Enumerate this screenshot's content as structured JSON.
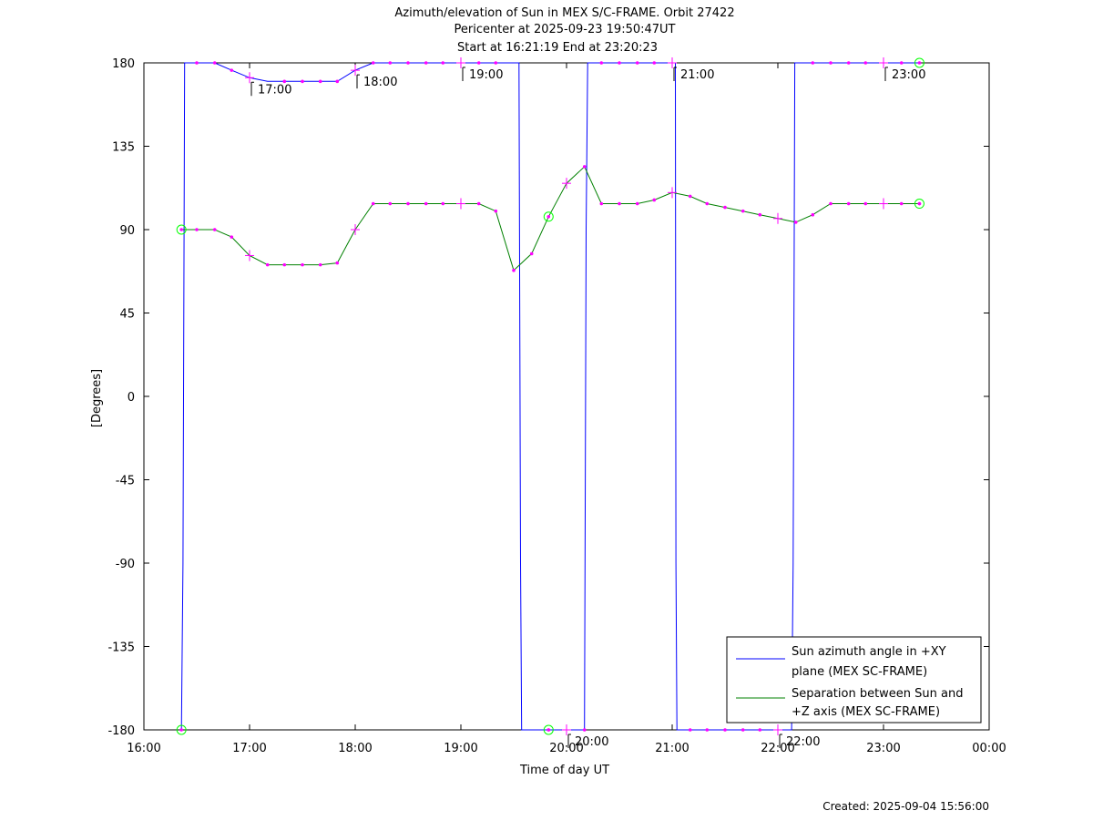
{
  "chart_data": {
    "type": "line",
    "title": "Azimuth/elevation of Sun in MEX S/C-FRAME.  Orbit 27422",
    "subtitle_1": "Pericenter at 2025-09-23 19:50:47UT",
    "subtitle_2": "Start at 16:21:19 End at 23:20:23",
    "xlabel": "Time of day UT",
    "ylabel": "[Degrees]",
    "footer": "Created: 2025-09-04 15:56:00",
    "x_unit": "hours of day UT",
    "xlim": [
      16,
      24
    ],
    "ylim": [
      -180,
      180
    ],
    "x_ticks": [
      16,
      17,
      18,
      19,
      20,
      21,
      22,
      23,
      24
    ],
    "x_tick_labels": [
      "16:00",
      "17:00",
      "18:00",
      "19:00",
      "20:00",
      "21:00",
      "22:00",
      "23:00",
      "00:00"
    ],
    "y_ticks": [
      180,
      135,
      90,
      45,
      0,
      -45,
      -90,
      -135,
      -180
    ],
    "y_tick_labels": [
      "180",
      "135",
      "90",
      "45",
      "0",
      "-45",
      "-90",
      "-135",
      "-180"
    ],
    "grid": false,
    "legend_position": "bottom-right",
    "colors": {
      "azimuth": "#0000ff",
      "separation": "#008000",
      "markers": "#ff00ff",
      "circle_markers": "#00ff00",
      "axes": "#000000"
    },
    "series": [
      {
        "name": "Sun azimuth angle in +XY plane (MEX SC-FRAME)",
        "legend_lines": [
          "Sun azimuth angle in +XY",
          "plane (MEX SC-FRAME)"
        ],
        "color": "#0000ff",
        "points": [
          [
            16.355,
            -180
          ],
          [
            16.37,
            -90
          ],
          [
            16.385,
            180
          ],
          [
            16.5,
            180
          ],
          [
            16.67,
            180
          ],
          [
            16.83,
            176
          ],
          [
            17.0,
            172
          ],
          [
            17.17,
            170
          ],
          [
            17.33,
            170
          ],
          [
            17.5,
            170
          ],
          [
            17.67,
            170
          ],
          [
            17.83,
            170
          ],
          [
            18.0,
            176
          ],
          [
            18.17,
            180
          ],
          [
            18.33,
            180
          ],
          [
            18.5,
            180
          ],
          [
            18.67,
            180
          ],
          [
            18.83,
            180
          ],
          [
            19.0,
            180
          ],
          [
            19.17,
            180
          ],
          [
            19.33,
            180
          ],
          [
            19.55,
            180
          ],
          [
            19.565,
            -90
          ],
          [
            19.575,
            -180
          ],
          [
            19.83,
            -180
          ],
          [
            20.0,
            -180
          ],
          [
            20.17,
            -180
          ],
          [
            20.185,
            90
          ],
          [
            20.2,
            180
          ],
          [
            20.33,
            180
          ],
          [
            20.5,
            180
          ],
          [
            20.67,
            180
          ],
          [
            20.83,
            180
          ],
          [
            21.0,
            180
          ],
          [
            21.03,
            180
          ],
          [
            21.035,
            -90
          ],
          [
            21.045,
            -180
          ],
          [
            21.17,
            -180
          ],
          [
            21.33,
            -180
          ],
          [
            21.5,
            -180
          ],
          [
            21.67,
            -180
          ],
          [
            21.83,
            -180
          ],
          [
            22.0,
            -180
          ],
          [
            22.13,
            -180
          ],
          [
            22.145,
            -90
          ],
          [
            22.16,
            180
          ],
          [
            22.33,
            180
          ],
          [
            22.5,
            180
          ],
          [
            22.67,
            180
          ],
          [
            22.83,
            180
          ],
          [
            23.0,
            180
          ],
          [
            23.17,
            180
          ],
          [
            23.34,
            180
          ]
        ]
      },
      {
        "name": "Separation between Sun and +Z axis (MEX SC-FRAME)",
        "legend_lines": [
          "Separation between Sun and",
          "+Z axis (MEX SC-FRAME)"
        ],
        "color": "#008000",
        "points": [
          [
            16.355,
            90
          ],
          [
            16.5,
            90
          ],
          [
            16.67,
            90
          ],
          [
            16.83,
            86
          ],
          [
            17.0,
            76
          ],
          [
            17.17,
            71
          ],
          [
            17.33,
            71
          ],
          [
            17.5,
            71
          ],
          [
            17.67,
            71
          ],
          [
            17.83,
            72
          ],
          [
            18.0,
            90
          ],
          [
            18.17,
            104
          ],
          [
            18.33,
            104
          ],
          [
            18.5,
            104
          ],
          [
            18.67,
            104
          ],
          [
            18.83,
            104
          ],
          [
            19.0,
            104
          ],
          [
            19.17,
            104
          ],
          [
            19.33,
            100
          ],
          [
            19.5,
            68
          ],
          [
            19.67,
            77
          ],
          [
            19.83,
            97
          ],
          [
            20.0,
            115
          ],
          [
            20.17,
            124
          ],
          [
            20.33,
            104
          ],
          [
            20.5,
            104
          ],
          [
            20.67,
            104
          ],
          [
            20.83,
            106
          ],
          [
            21.0,
            110
          ],
          [
            21.17,
            108
          ],
          [
            21.33,
            104
          ],
          [
            21.5,
            102
          ],
          [
            21.67,
            100
          ],
          [
            21.83,
            98
          ],
          [
            22.0,
            96
          ],
          [
            22.17,
            94
          ],
          [
            22.33,
            98
          ],
          [
            22.5,
            104
          ],
          [
            22.67,
            104
          ],
          [
            22.83,
            104
          ],
          [
            23.0,
            104
          ],
          [
            23.17,
            104
          ],
          [
            23.34,
            104
          ]
        ]
      }
    ],
    "hour_annotations": [
      {
        "label": "17:00",
        "x": 17,
        "y": 172
      },
      {
        "label": "18:00",
        "x": 18,
        "y": 176
      },
      {
        "label": "19:00",
        "x": 19,
        "y": 180
      },
      {
        "label": "20:00",
        "x": 20,
        "y": -180
      },
      {
        "label": "21:00",
        "x": 21,
        "y": 180
      },
      {
        "label": "22:00",
        "x": 22,
        "y": -180
      },
      {
        "label": "23:00",
        "x": 23,
        "y": 180
      }
    ],
    "dot_markers": [
      [
        16.5,
        180
      ],
      [
        16.67,
        180
      ],
      [
        16.83,
        176
      ],
      [
        17.33,
        170
      ],
      [
        17.5,
        170
      ],
      [
        17.67,
        170
      ],
      [
        17.83,
        170
      ],
      [
        18.17,
        180
      ],
      [
        18.33,
        180
      ],
      [
        18.5,
        180
      ],
      [
        18.67,
        180
      ],
      [
        18.83,
        180
      ],
      [
        19.17,
        180
      ],
      [
        19.33,
        180
      ],
      [
        20.33,
        180
      ],
      [
        20.5,
        180
      ],
      [
        20.67,
        180
      ],
      [
        20.83,
        180
      ],
      [
        21.17,
        -180
      ],
      [
        21.33,
        -180
      ],
      [
        21.5,
        -180
      ],
      [
        21.67,
        -180
      ],
      [
        21.83,
        -180
      ],
      [
        22.33,
        180
      ],
      [
        22.5,
        180
      ],
      [
        22.67,
        180
      ],
      [
        22.83,
        180
      ],
      [
        23.17,
        180
      ],
      [
        16.5,
        90
      ],
      [
        16.67,
        90
      ],
      [
        16.83,
        86
      ],
      [
        17.17,
        71
      ],
      [
        17.33,
        71
      ],
      [
        17.5,
        71
      ],
      [
        17.67,
        71
      ],
      [
        17.83,
        72
      ],
      [
        18.17,
        104
      ],
      [
        18.33,
        104
      ],
      [
        18.5,
        104
      ],
      [
        18.67,
        104
      ],
      [
        18.83,
        104
      ],
      [
        19.17,
        104
      ],
      [
        19.33,
        100
      ],
      [
        19.5,
        68
      ],
      [
        19.67,
        77
      ],
      [
        20.17,
        124
      ],
      [
        20.33,
        104
      ],
      [
        20.5,
        104
      ],
      [
        20.67,
        104
      ],
      [
        20.83,
        106
      ],
      [
        21.17,
        108
      ],
      [
        21.33,
        104
      ],
      [
        21.5,
        102
      ],
      [
        21.67,
        100
      ],
      [
        21.83,
        98
      ],
      [
        22.17,
        94
      ],
      [
        22.33,
        98
      ],
      [
        22.5,
        104
      ],
      [
        22.67,
        104
      ],
      [
        22.83,
        104
      ],
      [
        23.17,
        104
      ],
      [
        23.34,
        104
      ],
      [
        19.83,
        -180
      ],
      [
        20.17,
        -180
      ]
    ],
    "plus_markers": [
      [
        17.0,
        172
      ],
      [
        18.0,
        176
      ],
      [
        19.0,
        180
      ],
      [
        20.0,
        -180
      ],
      [
        21.0,
        180
      ],
      [
        22.0,
        -180
      ],
      [
        23.0,
        180
      ],
      [
        17.0,
        76
      ],
      [
        18.0,
        90
      ],
      [
        19.0,
        104
      ],
      [
        20.0,
        115
      ],
      [
        21.0,
        110
      ],
      [
        22.0,
        96
      ],
      [
        23.0,
        104
      ]
    ],
    "circle_markers": [
      [
        16.355,
        90
      ],
      [
        16.355,
        -180
      ],
      [
        19.83,
        97
      ],
      [
        19.83,
        -180
      ],
      [
        23.34,
        180
      ],
      [
        23.34,
        104
      ]
    ]
  }
}
